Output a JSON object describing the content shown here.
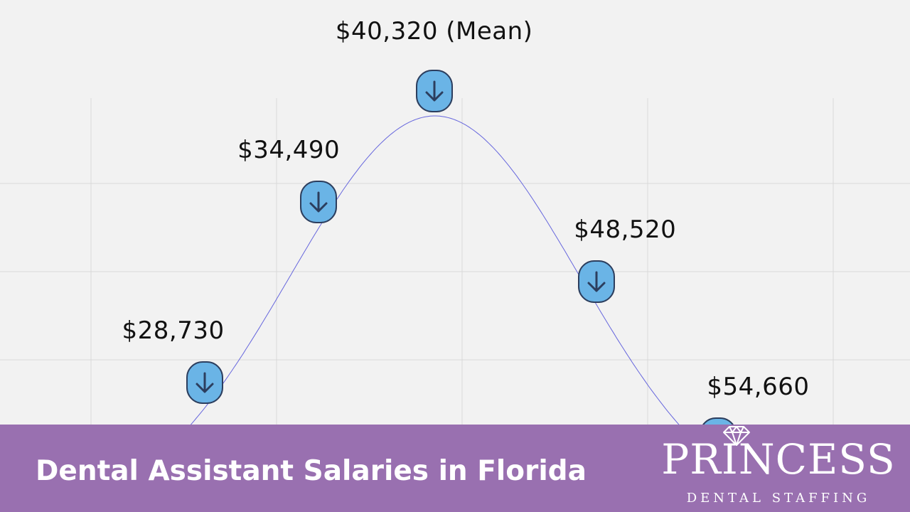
{
  "chart_data": {
    "type": "line",
    "title": "",
    "xlabel": "",
    "ylabel": "",
    "description_type": "normal-distribution curve",
    "mean": 40320,
    "x_range": [
      22970,
      60420
    ],
    "grid": true,
    "points": [
      {
        "value": 28730,
        "label": "$28,730"
      },
      {
        "value": 34490,
        "label": "$34,490"
      },
      {
        "value": 40320,
        "label": "$40,320 (Mean)"
      },
      {
        "value": 48520,
        "label": "$48,520"
      },
      {
        "value": 54660,
        "label": "$54,660"
      }
    ],
    "colors": {
      "curve": "#6666dd",
      "marker_fill": "#6ab4e6",
      "marker_stroke": "#2c3e5e",
      "grid": "#d9d9d9"
    }
  },
  "footer": {
    "title": "Dental Assistant Salaries in Florida",
    "bar_color": "#9970b0"
  },
  "logo": {
    "name": "PRINCESS",
    "subtitle": "DENTAL STAFFING",
    "icon": "diamond-icon"
  },
  "marker_icon": "arrow-down-icon"
}
